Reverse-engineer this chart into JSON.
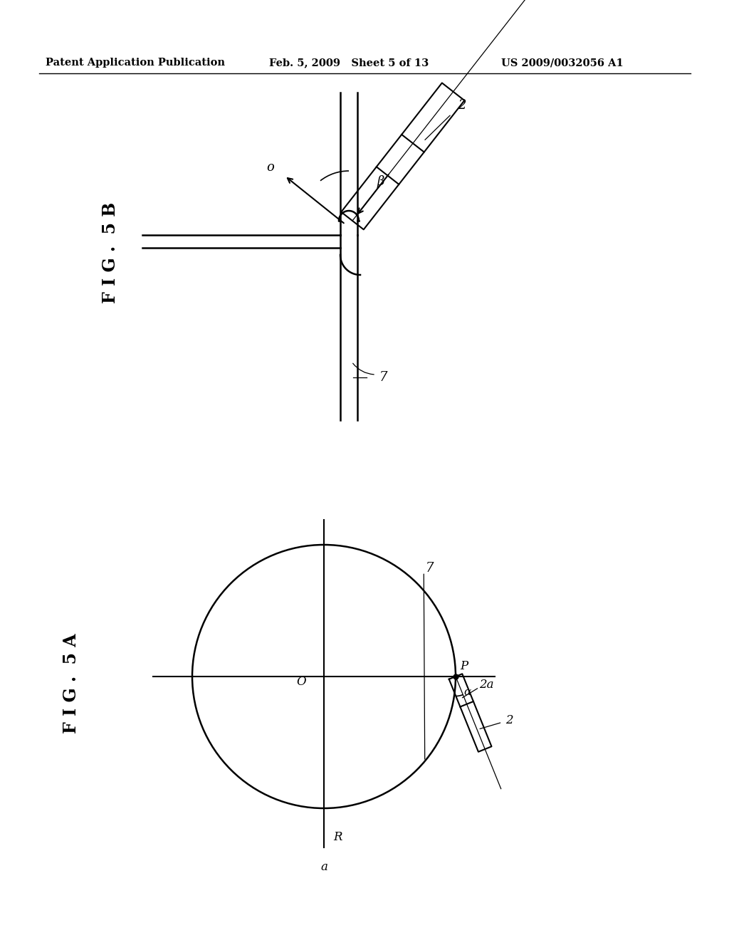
{
  "bg_color": "#ffffff",
  "header_left": "Patent Application Publication",
  "header_mid": "Feb. 5, 2009   Sheet 5 of 13",
  "header_right": "US 2009/0032056 A1",
  "line_color": "#000000",
  "text_color": "#000000",
  "fig5b_label": "F I G .  5 B",
  "fig5a_label": "F I G .  5 A"
}
